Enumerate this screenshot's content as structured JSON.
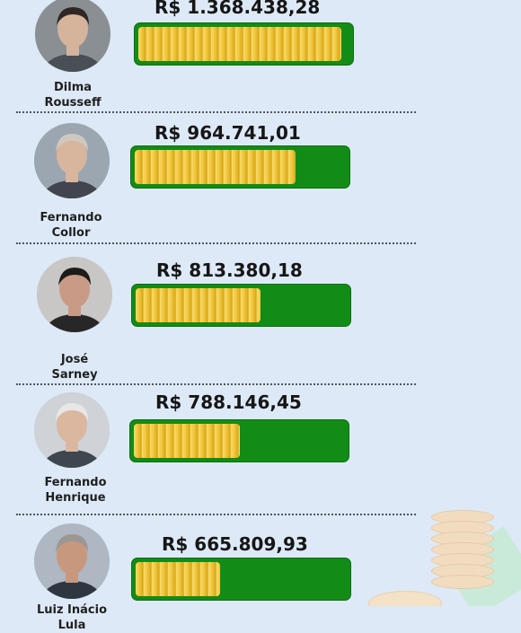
{
  "entries": [
    {
      "name": "Dilma\nRousseff",
      "amount": "R$ 1.368.438,28",
      "value": 1368438.28,
      "fill_fraction": 0.96,
      "avatar": {
        "bg": "#8a8f93",
        "skin": "#d6b49b",
        "hair": "#2f2725",
        "cloth": "#4a4f56"
      }
    },
    {
      "name": "Fernando\nCollor",
      "amount": "R$ 964.741,01",
      "value": 964741.01,
      "fill_fraction": 0.76,
      "avatar": {
        "bg": "#9ca6b0",
        "skin": "#d8b59d",
        "hair": "#cfc8bf",
        "cloth": "#42454d"
      }
    },
    {
      "name": "José\nSarney",
      "amount": "R$ 813.380,18",
      "value": 813380.18,
      "fill_fraction": 0.59,
      "avatar": {
        "bg": "#c8c7c5",
        "skin": "#c99a85",
        "hair": "#1e1b1b",
        "cloth": "#272727"
      }
    },
    {
      "name": "Fernando\nHenrique",
      "amount": "R$ 788.146,45",
      "value": 788146.45,
      "fill_fraction": 0.5,
      "avatar": {
        "bg": "#cfd3d8",
        "skin": "#dbb79f",
        "hair": "#e8e7e6",
        "cloth": "#3e4650"
      }
    },
    {
      "name": "Luiz Inácio\nLula",
      "amount": "R$ 665.809,93",
      "value": 665809.93,
      "fill_fraction": 0.4,
      "avatar": {
        "bg": "#aeb7c2",
        "skin": "#c8987e",
        "hair": "#9b9792",
        "cloth": "#2e3640"
      }
    }
  ],
  "colors": {
    "background": "#dde9f6",
    "bar": "#128c16",
    "coin": "#f2c63a",
    "divider": "#4f5560"
  },
  "icons": [
    "portrait-photo",
    "coin-stack",
    "banknote"
  ]
}
